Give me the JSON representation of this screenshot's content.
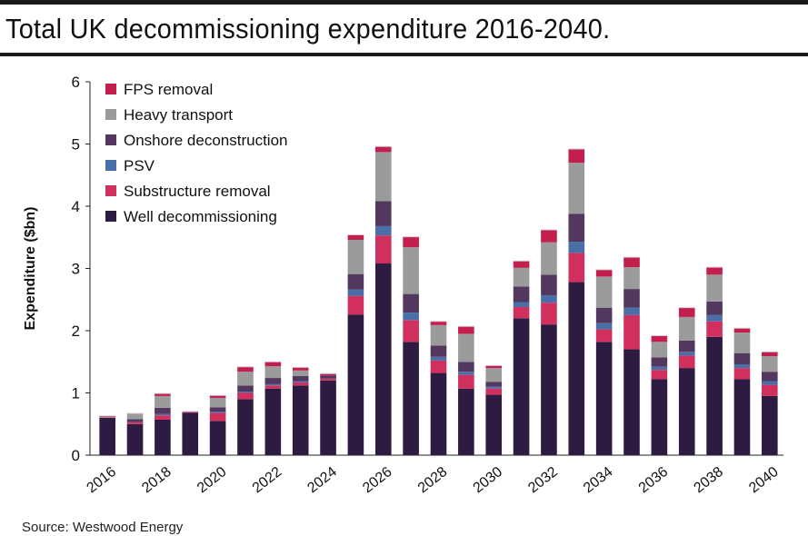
{
  "title": "Total UK decommissioning expenditure 2016-2040.",
  "source": "Source: Westwood Energy",
  "colors": {
    "fps": "#c41e4f",
    "heavy": "#9b9b9b",
    "onshore": "#52385f",
    "psv": "#4a6ea8",
    "substructure": "#d1305f",
    "well": "#2d1b41"
  },
  "chart_data": {
    "type": "bar",
    "stacked": true,
    "title": "Total UK decommissioning expenditure 2016-2040.",
    "xlabel": "",
    "ylabel": "Expenditure ($bn)",
    "ylim": [
      0,
      6
    ],
    "yticks": [
      "0",
      "1",
      "2",
      "3",
      "4",
      "5",
      "6"
    ],
    "categories": [
      "2016",
      "2017",
      "2018",
      "2019",
      "2020",
      "2021",
      "2022",
      "2023",
      "2024",
      "2025",
      "2026",
      "2027",
      "2028",
      "2029",
      "2030",
      "2031",
      "2032",
      "2033",
      "2034",
      "2035",
      "2036",
      "2037",
      "2038",
      "2039",
      "2040"
    ],
    "xtick_labels": [
      "2016",
      "2018",
      "2020",
      "2022",
      "2024",
      "2026",
      "2028",
      "2030",
      "2032",
      "2034",
      "2036",
      "2038",
      "2040"
    ],
    "legend_position": "top-left",
    "series": [
      {
        "name": "Well decommissioning",
        "color_key": "well",
        "values": [
          0.6,
          0.5,
          0.57,
          0.68,
          0.55,
          0.9,
          1.07,
          1.12,
          1.2,
          2.26,
          3.08,
          1.82,
          1.32,
          1.07,
          0.97,
          2.2,
          2.1,
          2.78,
          1.82,
          1.7,
          1.22,
          1.4,
          1.9,
          1.22,
          0.95
        ]
      },
      {
        "name": "Substructure removal",
        "color_key": "substructure",
        "values": [
          0.0,
          0.03,
          0.07,
          0.0,
          0.13,
          0.1,
          0.05,
          0.05,
          0.03,
          0.3,
          0.45,
          0.35,
          0.2,
          0.22,
          0.1,
          0.18,
          0.35,
          0.47,
          0.2,
          0.55,
          0.15,
          0.2,
          0.25,
          0.18,
          0.18
        ]
      },
      {
        "name": "PSV",
        "color_key": "psv",
        "values": [
          0.0,
          0.0,
          0.02,
          0.0,
          0.02,
          0.02,
          0.02,
          0.02,
          0.0,
          0.1,
          0.15,
          0.12,
          0.06,
          0.05,
          0.03,
          0.08,
          0.12,
          0.18,
          0.1,
          0.12,
          0.05,
          0.06,
          0.1,
          0.06,
          0.06
        ]
      },
      {
        "name": "Onshore deconstruction",
        "color_key": "onshore",
        "values": [
          0.0,
          0.05,
          0.1,
          0.0,
          0.07,
          0.1,
          0.1,
          0.08,
          0.05,
          0.25,
          0.4,
          0.3,
          0.18,
          0.16,
          0.08,
          0.25,
          0.33,
          0.45,
          0.25,
          0.3,
          0.15,
          0.18,
          0.22,
          0.18,
          0.15
        ]
      },
      {
        "name": "Heavy transport",
        "color_key": "heavy",
        "values": [
          0.01,
          0.08,
          0.19,
          0.0,
          0.15,
          0.22,
          0.19,
          0.09,
          0.0,
          0.55,
          0.79,
          0.75,
          0.33,
          0.45,
          0.22,
          0.3,
          0.52,
          0.82,
          0.5,
          0.35,
          0.25,
          0.38,
          0.43,
          0.33,
          0.25
        ]
      },
      {
        "name": "FPS removal",
        "color_key": "fps",
        "values": [
          0.02,
          0.01,
          0.04,
          0.02,
          0.04,
          0.08,
          0.07,
          0.05,
          0.03,
          0.08,
          0.09,
          0.17,
          0.06,
          0.12,
          0.04,
          0.11,
          0.2,
          0.22,
          0.11,
          0.16,
          0.1,
          0.15,
          0.12,
          0.07,
          0.07
        ]
      }
    ],
    "legend_order": [
      "FPS removal",
      "Heavy transport",
      "Onshore deconstruction",
      "PSV",
      "Substructure removal",
      "Well decommissioning"
    ]
  }
}
